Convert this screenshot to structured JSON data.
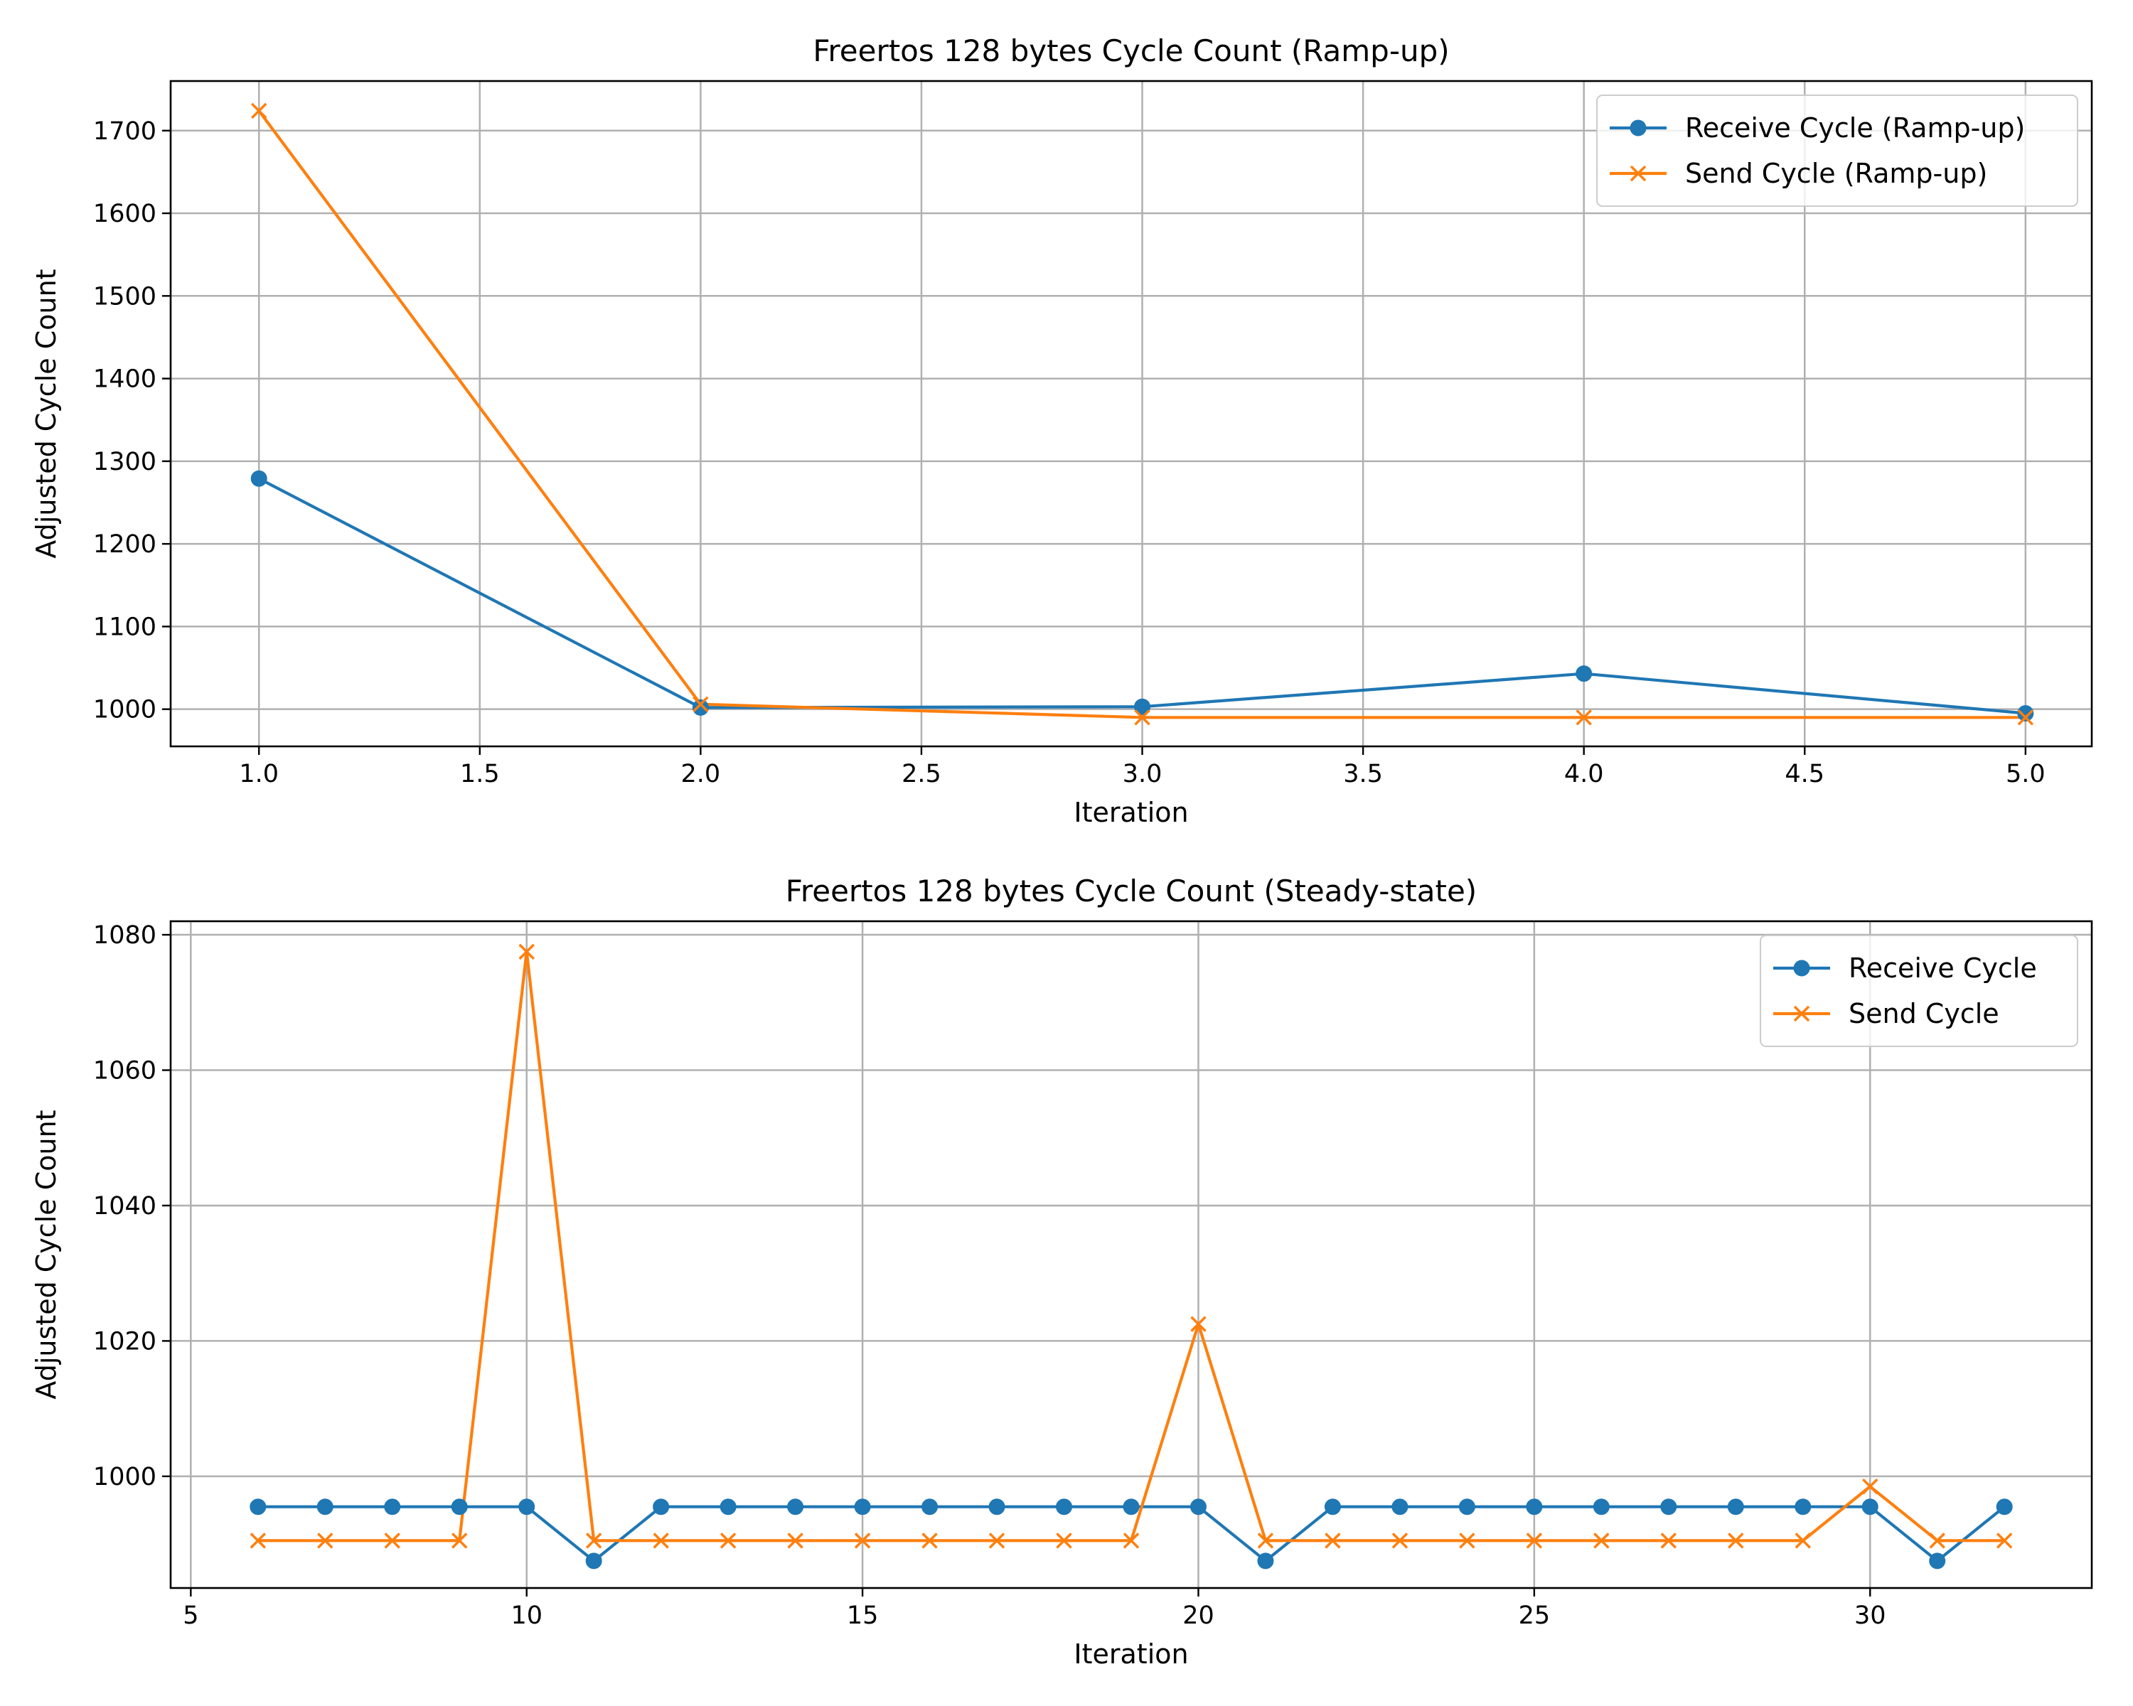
{
  "colors": {
    "receive": "#1f77b4",
    "send": "#ff7f0e",
    "grid": "#b0b0b0"
  },
  "chart_data": [
    {
      "type": "line",
      "title": "Freertos 128 bytes Cycle Count (Ramp-up)",
      "xlabel": "Iteration",
      "ylabel": "Adjusted Cycle Count",
      "xlim": [
        0.8,
        5.15
      ],
      "ylim": [
        955,
        1760
      ],
      "xticks": [
        1.0,
        1.5,
        2.0,
        2.5,
        3.0,
        3.5,
        4.0,
        4.5,
        5.0
      ],
      "xtick_labels": [
        "1.0",
        "1.5",
        "2.0",
        "2.5",
        "3.0",
        "3.5",
        "4.0",
        "4.5",
        "5.0"
      ],
      "yticks": [
        1000,
        1100,
        1200,
        1300,
        1400,
        1500,
        1600,
        1700
      ],
      "ytick_labels": [
        "1000",
        "1100",
        "1200",
        "1300",
        "1400",
        "1500",
        "1600",
        "1700"
      ],
      "grid": true,
      "legend_position": "top-right",
      "series": [
        {
          "name": "Receive Cycle (Ramp-up)",
          "marker": "circle",
          "color": "#1f77b4",
          "x": [
            1,
            2,
            3,
            4,
            5
          ],
          "y": [
            1279,
            1002,
            1003,
            1043,
            995
          ]
        },
        {
          "name": "Send Cycle (Ramp-up)",
          "marker": "x",
          "color": "#ff7f0e",
          "x": [
            1,
            2,
            3,
            4,
            5
          ],
          "y": [
            1724,
            1006,
            990,
            990,
            990
          ]
        }
      ]
    },
    {
      "type": "line",
      "title": "Freertos 128 bytes Cycle Count (Steady-state)",
      "xlabel": "Iteration",
      "ylabel": "Adjusted Cycle Count",
      "xlim": [
        4.7,
        33.3
      ],
      "ylim": [
        983.5,
        1082
      ],
      "xticks": [
        5,
        10,
        15,
        20,
        25,
        30
      ],
      "xtick_labels": [
        "5",
        "10",
        "15",
        "20",
        "25",
        "30"
      ],
      "yticks": [
        1000,
        1020,
        1040,
        1060,
        1080
      ],
      "ytick_labels": [
        "1000",
        "1020",
        "1040",
        "1060",
        "1080"
      ],
      "grid": true,
      "legend_position": "top-right",
      "series": [
        {
          "name": "Receive Cycle",
          "marker": "circle",
          "color": "#1f77b4",
          "x": [
            6,
            7,
            8,
            9,
            10,
            11,
            12,
            13,
            14,
            15,
            16,
            17,
            18,
            19,
            20,
            21,
            22,
            23,
            24,
            25,
            26,
            27,
            28,
            29,
            30,
            31,
            32
          ],
          "y": [
            995.5,
            995.5,
            995.5,
            995.5,
            995.5,
            987.5,
            995.5,
            995.5,
            995.5,
            995.5,
            995.5,
            995.5,
            995.5,
            995.5,
            995.5,
            987.5,
            995.5,
            995.5,
            995.5,
            995.5,
            995.5,
            995.5,
            995.5,
            995.5,
            995.5,
            987.5,
            995.5
          ]
        },
        {
          "name": "Send Cycle",
          "marker": "x",
          "color": "#ff7f0e",
          "x": [
            6,
            7,
            8,
            9,
            10,
            11,
            12,
            13,
            14,
            15,
            16,
            17,
            18,
            19,
            20,
            21,
            22,
            23,
            24,
            25,
            26,
            27,
            28,
            29,
            30,
            31,
            32
          ],
          "y": [
            990.5,
            990.5,
            990.5,
            990.5,
            1077.5,
            990.5,
            990.5,
            990.5,
            990.5,
            990.5,
            990.5,
            990.5,
            990.5,
            990.5,
            1022.5,
            990.5,
            990.5,
            990.5,
            990.5,
            990.5,
            990.5,
            990.5,
            990.5,
            990.5,
            998.5,
            990.5,
            990.5
          ]
        }
      ]
    }
  ]
}
